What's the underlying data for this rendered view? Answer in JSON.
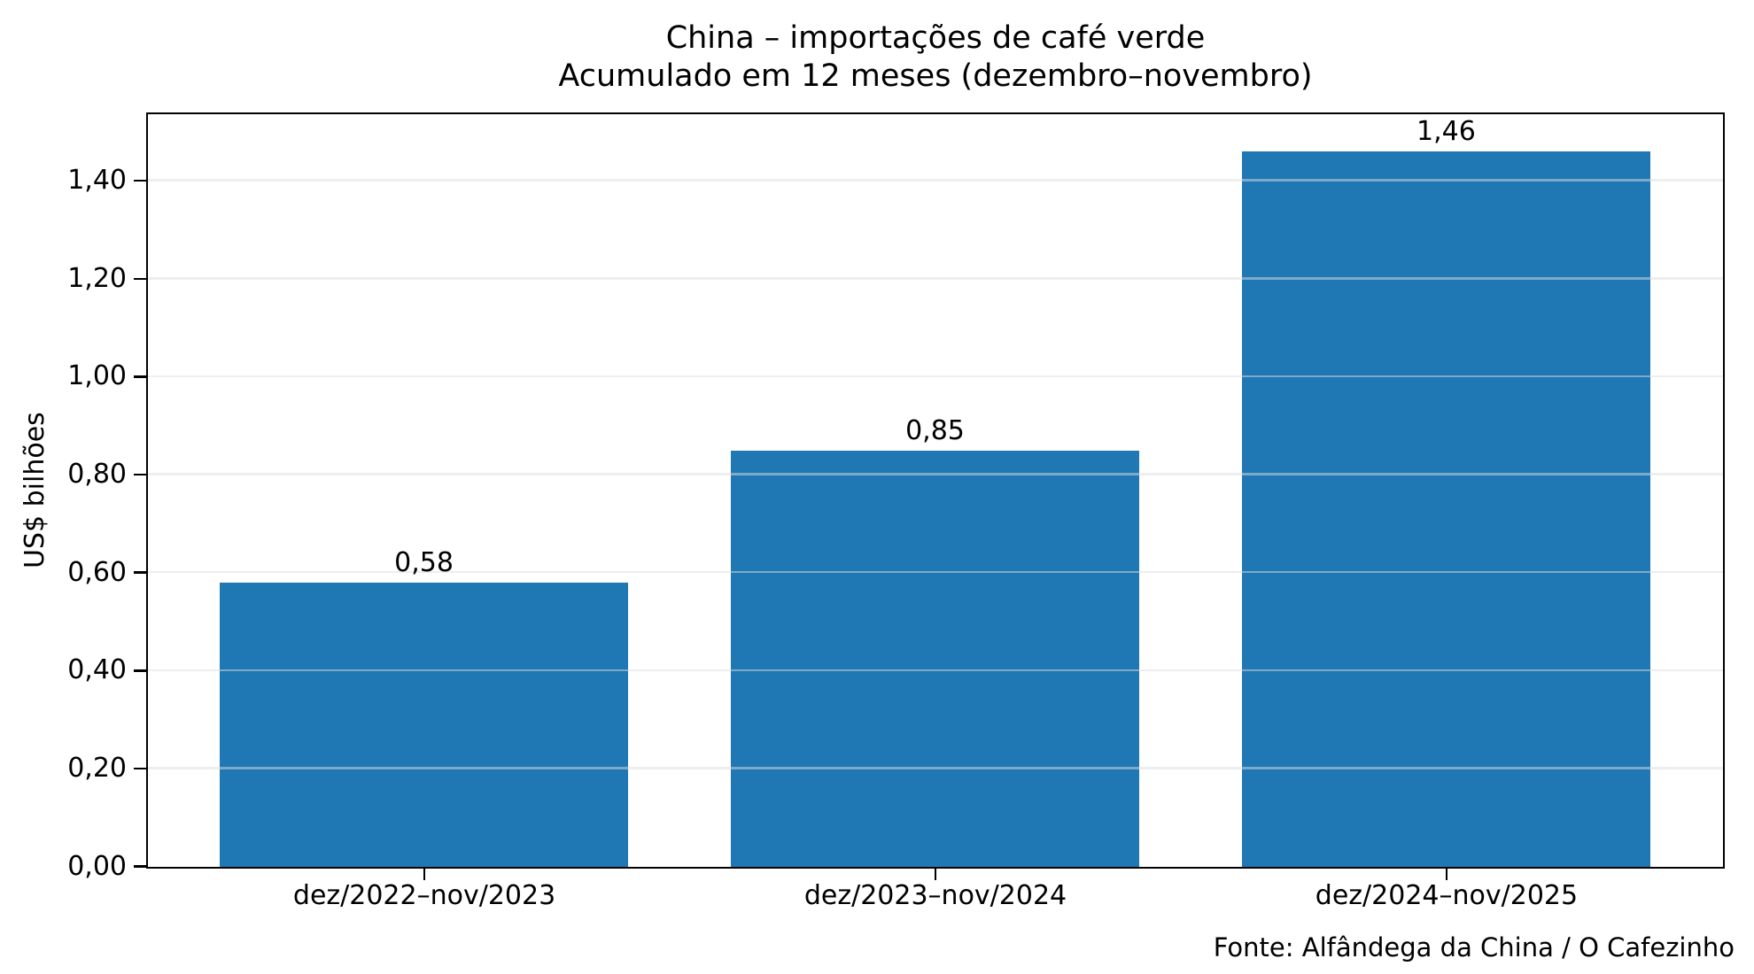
{
  "title": {
    "line1": "China – importações de café verde",
    "line2": "Acumulado em 12 meses (dezembro–novembro)"
  },
  "source": "Fonte: Alfândega da China / O Cafezinho",
  "colors": {
    "bar": "#1f77b4",
    "grid": "rgba(222,222,222,0.5)",
    "axis": "#000000",
    "text": "#000000",
    "background": "#ffffff"
  },
  "chart_data": {
    "type": "bar",
    "title": "China – importações de café verde",
    "subtitle": "Acumulado em 12 meses (dezembro–novembro)",
    "categories": [
      "dez/2022–nov/2023",
      "dez/2023–nov/2024",
      "dez/2024–nov/2025"
    ],
    "values": [
      0.58,
      0.85,
      1.46
    ],
    "value_labels": [
      "0,58",
      "0,85",
      "1,46"
    ],
    "xlabel": "",
    "ylabel": "US$ bilhões",
    "ylim": [
      0,
      1.535
    ],
    "yticks": [
      0,
      0.2,
      0.4,
      0.6,
      0.8,
      1.0,
      1.2,
      1.4
    ],
    "ytick_labels": [
      "0,00",
      "0,20",
      "0,40",
      "0,60",
      "0,80",
      "1,00",
      "1,20",
      "1,40"
    ],
    "number_format": "pt-BR comma decimal",
    "grid": "horizontal, drawn above bars",
    "legend": "none",
    "bar_color": "#1f77b4",
    "source": "Fonte: Alfândega da China / O Cafezinho"
  }
}
